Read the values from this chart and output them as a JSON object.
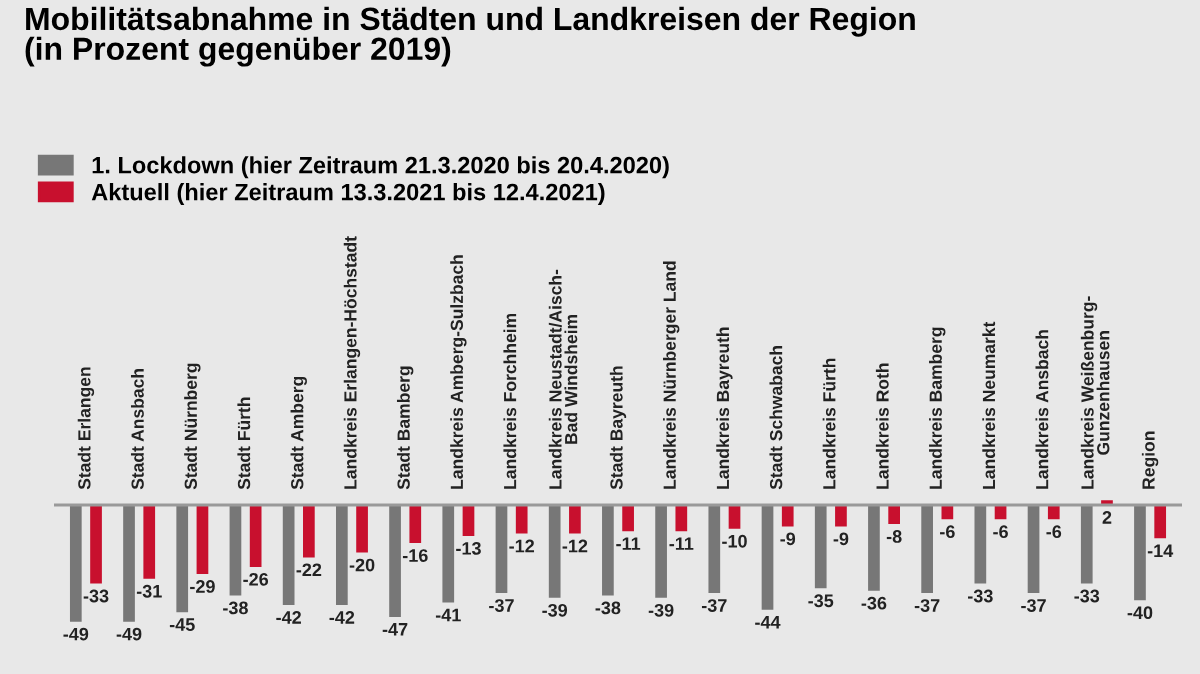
{
  "chart_data": {
    "type": "bar",
    "title": "Mobilitätsabnahme in Städten und Landkreisen der Region\n(in Prozent gegenüber 2019)",
    "categories": [
      "Stadt Erlangen",
      "Stadt Ansbach",
      "Stadt Nürnberg",
      "Stadt Fürth",
      "Stadt Amberg",
      "Landkreis Erlangen-Höchstadt",
      "Stadt Bamberg",
      "Landkreis Amberg-Sulzbach",
      "Landkreis Forchheim",
      "Landkreis Neustadt/Aisch-\nBad Windsheim",
      "Stadt Bayreuth",
      "Landkreis Nürnberger Land",
      "Landkreis Bayreuth",
      "Stadt Schwabach",
      "Landkreis Fürth",
      "Landkreis Roth",
      "Landkreis Bamberg",
      "Landkreis Neumarkt",
      "Landkreis Ansbach",
      "Landkreis Weißenburg-\nGunzenhausen",
      "Region"
    ],
    "series": [
      {
        "name": "1. Lockdown (hier Zeitraum 21.3.2020 bis 20.4.2020)",
        "color": "#777777",
        "values": [
          -49,
          -49,
          -45,
          -38,
          -42,
          -42,
          -47,
          -41,
          -37,
          -39,
          -38,
          -39,
          -37,
          -44,
          -35,
          -36,
          -37,
          -33,
          -37,
          -33,
          -40
        ]
      },
      {
        "name": "Aktuell (hier Zeitraum 13.3.2021 bis 12.4.2021)",
        "color": "#c8102e",
        "values": [
          -33,
          -31,
          -29,
          -26,
          -22,
          -20,
          -16,
          -13,
          -12,
          -12,
          -11,
          -11,
          -10,
          -9,
          -9,
          -8,
          -6,
          -6,
          -6,
          2,
          -14
        ]
      }
    ],
    "data_labels": true,
    "legend": "top left"
  }
}
